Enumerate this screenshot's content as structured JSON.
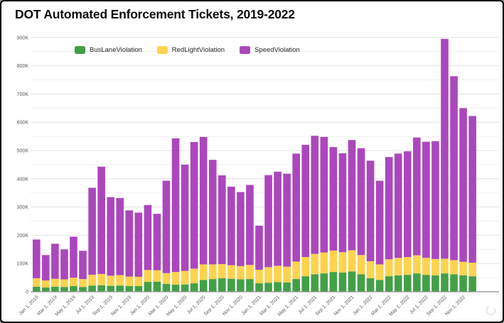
{
  "header": {
    "title": "DOT Automated Enforcement Tickets, 2019-2022"
  },
  "legend": {
    "items": [
      {
        "label": "BusLaneViolation",
        "color": "#43a047"
      },
      {
        "label": "RedLightViolation",
        "color": "#fdd34f"
      },
      {
        "label": "SpeedViolation",
        "color": "#ab47bc"
      }
    ]
  },
  "chart_data": {
    "type": "bar",
    "stacked": true,
    "title": "DOT Automated Enforcement Tickets, 2019-2022",
    "xlabel": "",
    "ylabel": "",
    "values_unit": "thousands of tickets",
    "ylim_thousands": [
      0,
      900
    ],
    "grid": true,
    "gridline_step_thousands": 50,
    "legend_position": "top-left-inside",
    "y_tick_labels": [
      "0",
      "100K",
      "200K",
      "300K",
      "400K",
      "500K",
      "600K",
      "700K",
      "800K",
      "900K"
    ],
    "x_tick_labels": [
      "Jan 1, 2019",
      "Mar 1, 2019",
      "May 1, 2019",
      "Jul 1, 2019",
      "Sep 1, 2019",
      "Nov 1, 2019",
      "Jan 1, 2020",
      "Mar 1, 2020",
      "May 1, 2020",
      "Jul 1, 2020",
      "Sep 1, 2020",
      "Nov 1, 2020",
      "Jan 1, 2021",
      "Mar 1, 2021",
      "May 1, 2021",
      "Jul 1, 2021",
      "Sep 1, 2021",
      "Nov 1, 2021",
      "Jan 1, 2022",
      "Mar 1, 2022",
      "May 1, 2022",
      "Jul 1, 2022",
      "Sep 1, 2022",
      "Nov 1, 2022"
    ],
    "categories": [
      "Jan 2019",
      "Feb 2019",
      "Mar 2019",
      "Apr 2019",
      "May 2019",
      "Jun 2019",
      "Jul 2019",
      "Aug 2019",
      "Sep 2019",
      "Oct 2019",
      "Nov 2019",
      "Dec 2019",
      "Jan 2020",
      "Feb 2020",
      "Mar 2020",
      "Apr 2020",
      "May 2020",
      "Jun 2020",
      "Jul 2020",
      "Aug 2020",
      "Sep 2020",
      "Oct 2020",
      "Nov 2020",
      "Dec 2020",
      "Jan 2021",
      "Feb 2021",
      "Mar 2021",
      "Apr 2021",
      "May 2021",
      "Jun 2021",
      "Jul 2021",
      "Aug 2021",
      "Sep 2021",
      "Oct 2021",
      "Nov 2021",
      "Dec 2021",
      "Jan 2022",
      "Feb 2022",
      "Mar 2022",
      "Apr 2022",
      "May 2022",
      "Jun 2022",
      "Jul 2022",
      "Aug 2022",
      "Sep 2022",
      "Oct 2022",
      "Nov 2022",
      "Dec 2022"
    ],
    "series": [
      {
        "name": "BusLaneViolation",
        "color": "#43a047",
        "values_thousands": [
          18,
          15,
          18,
          17,
          20,
          17,
          22,
          23,
          21,
          22,
          20,
          20,
          35,
          36,
          28,
          25,
          26,
          30,
          42,
          45,
          48,
          46,
          44,
          45,
          30,
          32,
          34,
          33,
          45,
          55,
          62,
          65,
          70,
          68,
          72,
          62,
          48,
          42,
          55,
          58,
          60,
          65,
          60,
          58,
          65,
          62,
          58,
          55
        ]
      },
      {
        "name": "RedLightViolation",
        "color": "#fdd34f",
        "values_thousands": [
          30,
          25,
          28,
          27,
          30,
          28,
          38,
          40,
          36,
          37,
          34,
          33,
          42,
          40,
          38,
          45,
          48,
          52,
          55,
          52,
          50,
          48,
          47,
          50,
          48,
          55,
          58,
          56,
          62,
          68,
          72,
          74,
          76,
          72,
          75,
          68,
          60,
          55,
          60,
          62,
          63,
          64,
          60,
          58,
          52,
          50,
          48,
          48
        ]
      },
      {
        "name": "SpeedViolation",
        "color": "#ab47bc",
        "values_thousands": [
          137,
          90,
          124,
          106,
          145,
          100,
          308,
          380,
          278,
          273,
          234,
          227,
          230,
          200,
          327,
          473,
          376,
          448,
          451,
          370,
          314,
          278,
          262,
          283,
          156,
          326,
          333,
          329,
          382,
          397,
          418,
          409,
          366,
          350,
          390,
          378,
          356,
          296,
          362,
          369,
          374,
          417,
          411,
          417,
          778,
          651,
          544,
          519
        ]
      }
    ]
  }
}
